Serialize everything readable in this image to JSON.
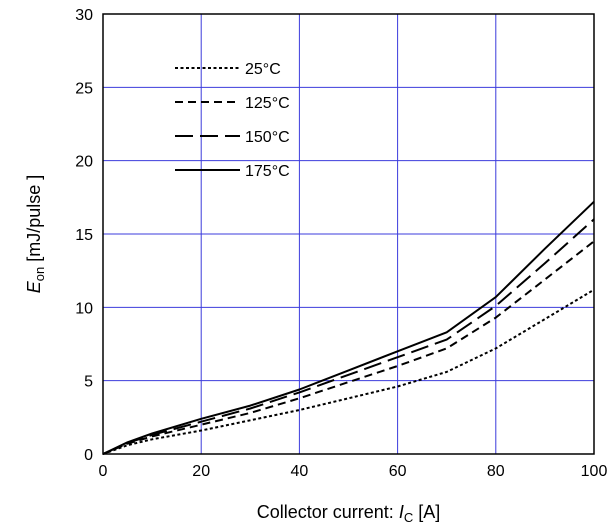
{
  "chart_data": {
    "type": "line",
    "title": "",
    "xlabel": {
      "main": "Collector current: ",
      "var": "I",
      "sub": "C",
      "unit": " [A]"
    },
    "ylabel": {
      "var": "E",
      "sub": "on",
      "unit": " [mJ/pulse ]"
    },
    "xlim": [
      0,
      100
    ],
    "ylim": [
      0,
      30
    ],
    "xticks": [
      0,
      20,
      40,
      60,
      80,
      100
    ],
    "yticks": [
      0,
      5,
      10,
      15,
      20,
      25,
      30
    ],
    "grid": true,
    "grid_color": "#3b3bdc",
    "legend_position": "top-left",
    "series": [
      {
        "name": "25°C",
        "dash": "dotted",
        "x": [
          0,
          5,
          10,
          20,
          30,
          40,
          50,
          60,
          70,
          80,
          90,
          100
        ],
        "y": [
          0,
          0.6,
          1.0,
          1.6,
          2.3,
          3.0,
          3.8,
          4.6,
          5.6,
          7.2,
          9.2,
          11.2
        ]
      },
      {
        "name": "125°C",
        "dash": "short-dash",
        "x": [
          0,
          5,
          10,
          20,
          30,
          40,
          50,
          60,
          70,
          80,
          90,
          100
        ],
        "y": [
          0,
          0.7,
          1.2,
          2.0,
          2.8,
          3.8,
          4.9,
          6.0,
          7.2,
          9.3,
          11.9,
          14.5
        ]
      },
      {
        "name": "150°C",
        "dash": "long-dash",
        "x": [
          0,
          5,
          10,
          20,
          30,
          40,
          50,
          60,
          70,
          80,
          90,
          100
        ],
        "y": [
          0,
          0.75,
          1.3,
          2.2,
          3.1,
          4.2,
          5.4,
          6.6,
          7.8,
          10.1,
          13.0,
          16.0
        ]
      },
      {
        "name": "175°C",
        "dash": "solid",
        "x": [
          0,
          5,
          10,
          20,
          30,
          40,
          50,
          60,
          70,
          80,
          90,
          100
        ],
        "y": [
          0,
          0.8,
          1.4,
          2.4,
          3.3,
          4.4,
          5.7,
          7.0,
          8.3,
          10.7,
          14.0,
          17.2
        ]
      }
    ]
  }
}
